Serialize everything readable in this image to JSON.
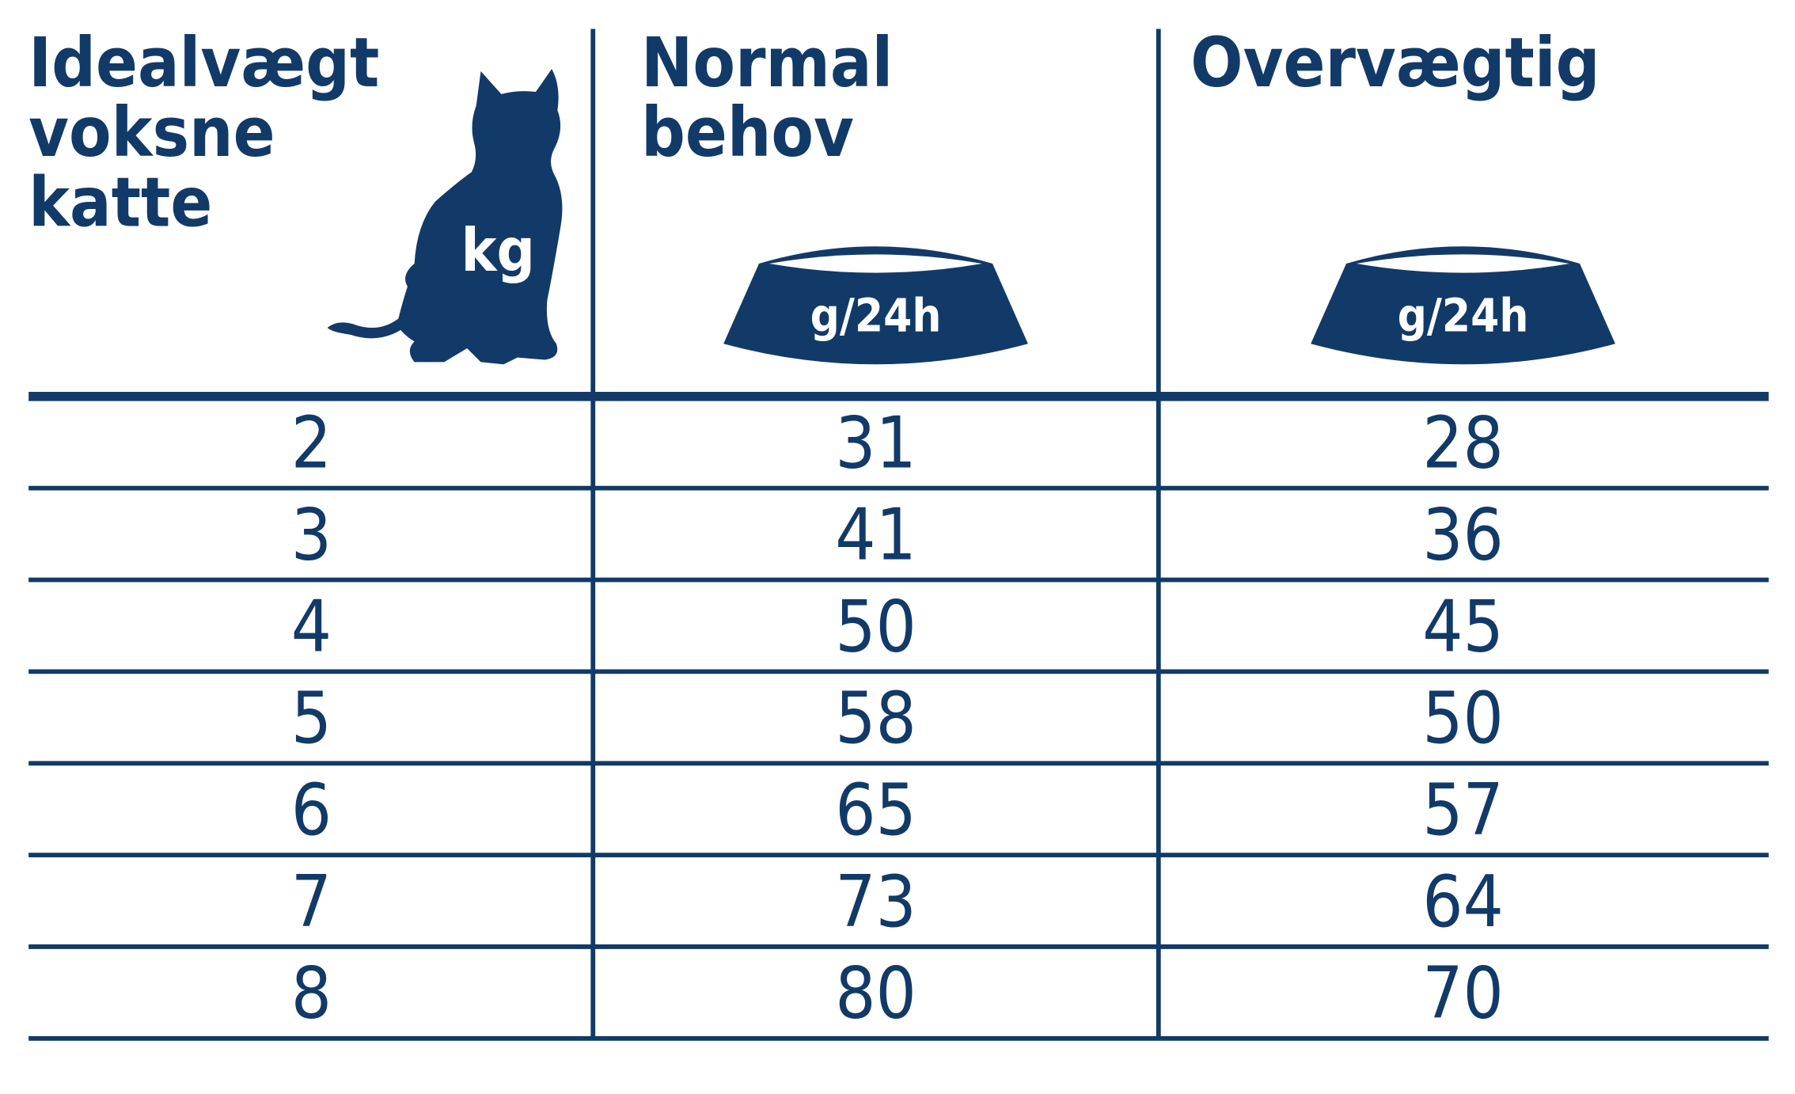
{
  "table": {
    "columns": [
      {
        "lines": [
          "Idealvægt",
          "voksne",
          "katte"
        ],
        "unit": "kg"
      },
      {
        "lines": [
          "Normal",
          "behov"
        ],
        "unit": "g/24h"
      },
      {
        "lines": [
          "Overvægtig"
        ],
        "unit": "g/24h"
      }
    ],
    "rows": [
      [
        "2",
        "31",
        "28"
      ],
      [
        "3",
        "41",
        "36"
      ],
      [
        "4",
        "50",
        "45"
      ],
      [
        "5",
        "58",
        "50"
      ],
      [
        "6",
        "65",
        "57"
      ],
      [
        "7",
        "73",
        "64"
      ],
      [
        "8",
        "80",
        "70"
      ]
    ]
  }
}
